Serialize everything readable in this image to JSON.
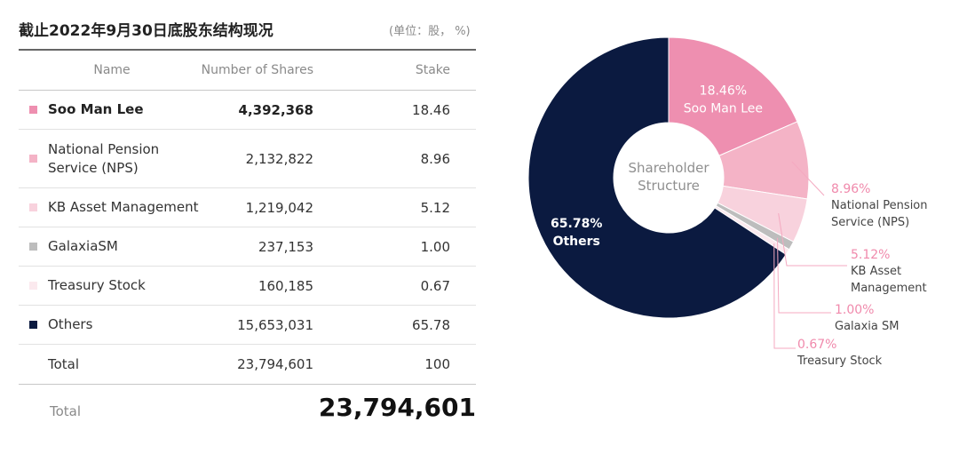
{
  "header": {
    "title": "截止2022年9月30日底股东结构现况",
    "unit": "(单位：股， %)"
  },
  "table": {
    "columns": [
      "Name",
      "Number of Shares",
      "Stake"
    ],
    "rows": [
      {
        "name": "Soo Man Lee",
        "shares": "4,392,368",
        "stake": "18.46",
        "color": "#ee8fb0"
      },
      {
        "name": "National Pension Service (NPS)",
        "shares": "2,132,822",
        "stake": "8.96",
        "color": "#f4b3c6"
      },
      {
        "name": "KB Asset Management",
        "shares": "1,219,042",
        "stake": "5.12",
        "color": "#f8d2dd"
      },
      {
        "name": "GalaxiaSM",
        "shares": "237,153",
        "stake": "1.00",
        "color": "#bdbdbd"
      },
      {
        "name": "Treasury Stock",
        "shares": "160,185",
        "stake": "0.67",
        "color": "#fbe9ee"
      },
      {
        "name": "Others",
        "shares": "15,653,031",
        "stake": "65.78",
        "color": "#0b1a40"
      },
      {
        "name": "Total",
        "shares": "23,794,601",
        "stake": "100"
      }
    ]
  },
  "grand_total": {
    "label": "Total",
    "value": "23,794,601"
  },
  "chart_data": {
    "type": "pie",
    "title": "Shareholder Structure",
    "slices": [
      {
        "label": "Soo Man Lee",
        "value": 18.46,
        "display": "18.46%",
        "color": "#ee8fb0"
      },
      {
        "label": "National Pension Service (NPS)",
        "value": 8.96,
        "display": "8.96%",
        "color": "#f4b3c6"
      },
      {
        "label": "KB Asset Management",
        "value": 5.12,
        "display": "5.12%",
        "color": "#f8d2dd"
      },
      {
        "label": "Galaxia SM",
        "value": 1.0,
        "display": "1.00%",
        "color": "#bdbdbd"
      },
      {
        "label": "Treasury Stock",
        "value": 0.67,
        "display": "0.67%",
        "color": "#fbe9ee"
      },
      {
        "label": "Others",
        "value": 65.78,
        "display": "65.78%",
        "color": "#0b1a40"
      }
    ],
    "outside_labels": {
      "nps": [
        "National Pension",
        "Service (NPS)"
      ],
      "kb": [
        "KB Asset",
        "Management"
      ],
      "galaxia": [
        "Galaxia SM"
      ],
      "treasury": [
        "Treasury Stock"
      ]
    },
    "center_label": [
      "Shareholder",
      "Structure"
    ],
    "accent_label_color": "#f08aac"
  }
}
